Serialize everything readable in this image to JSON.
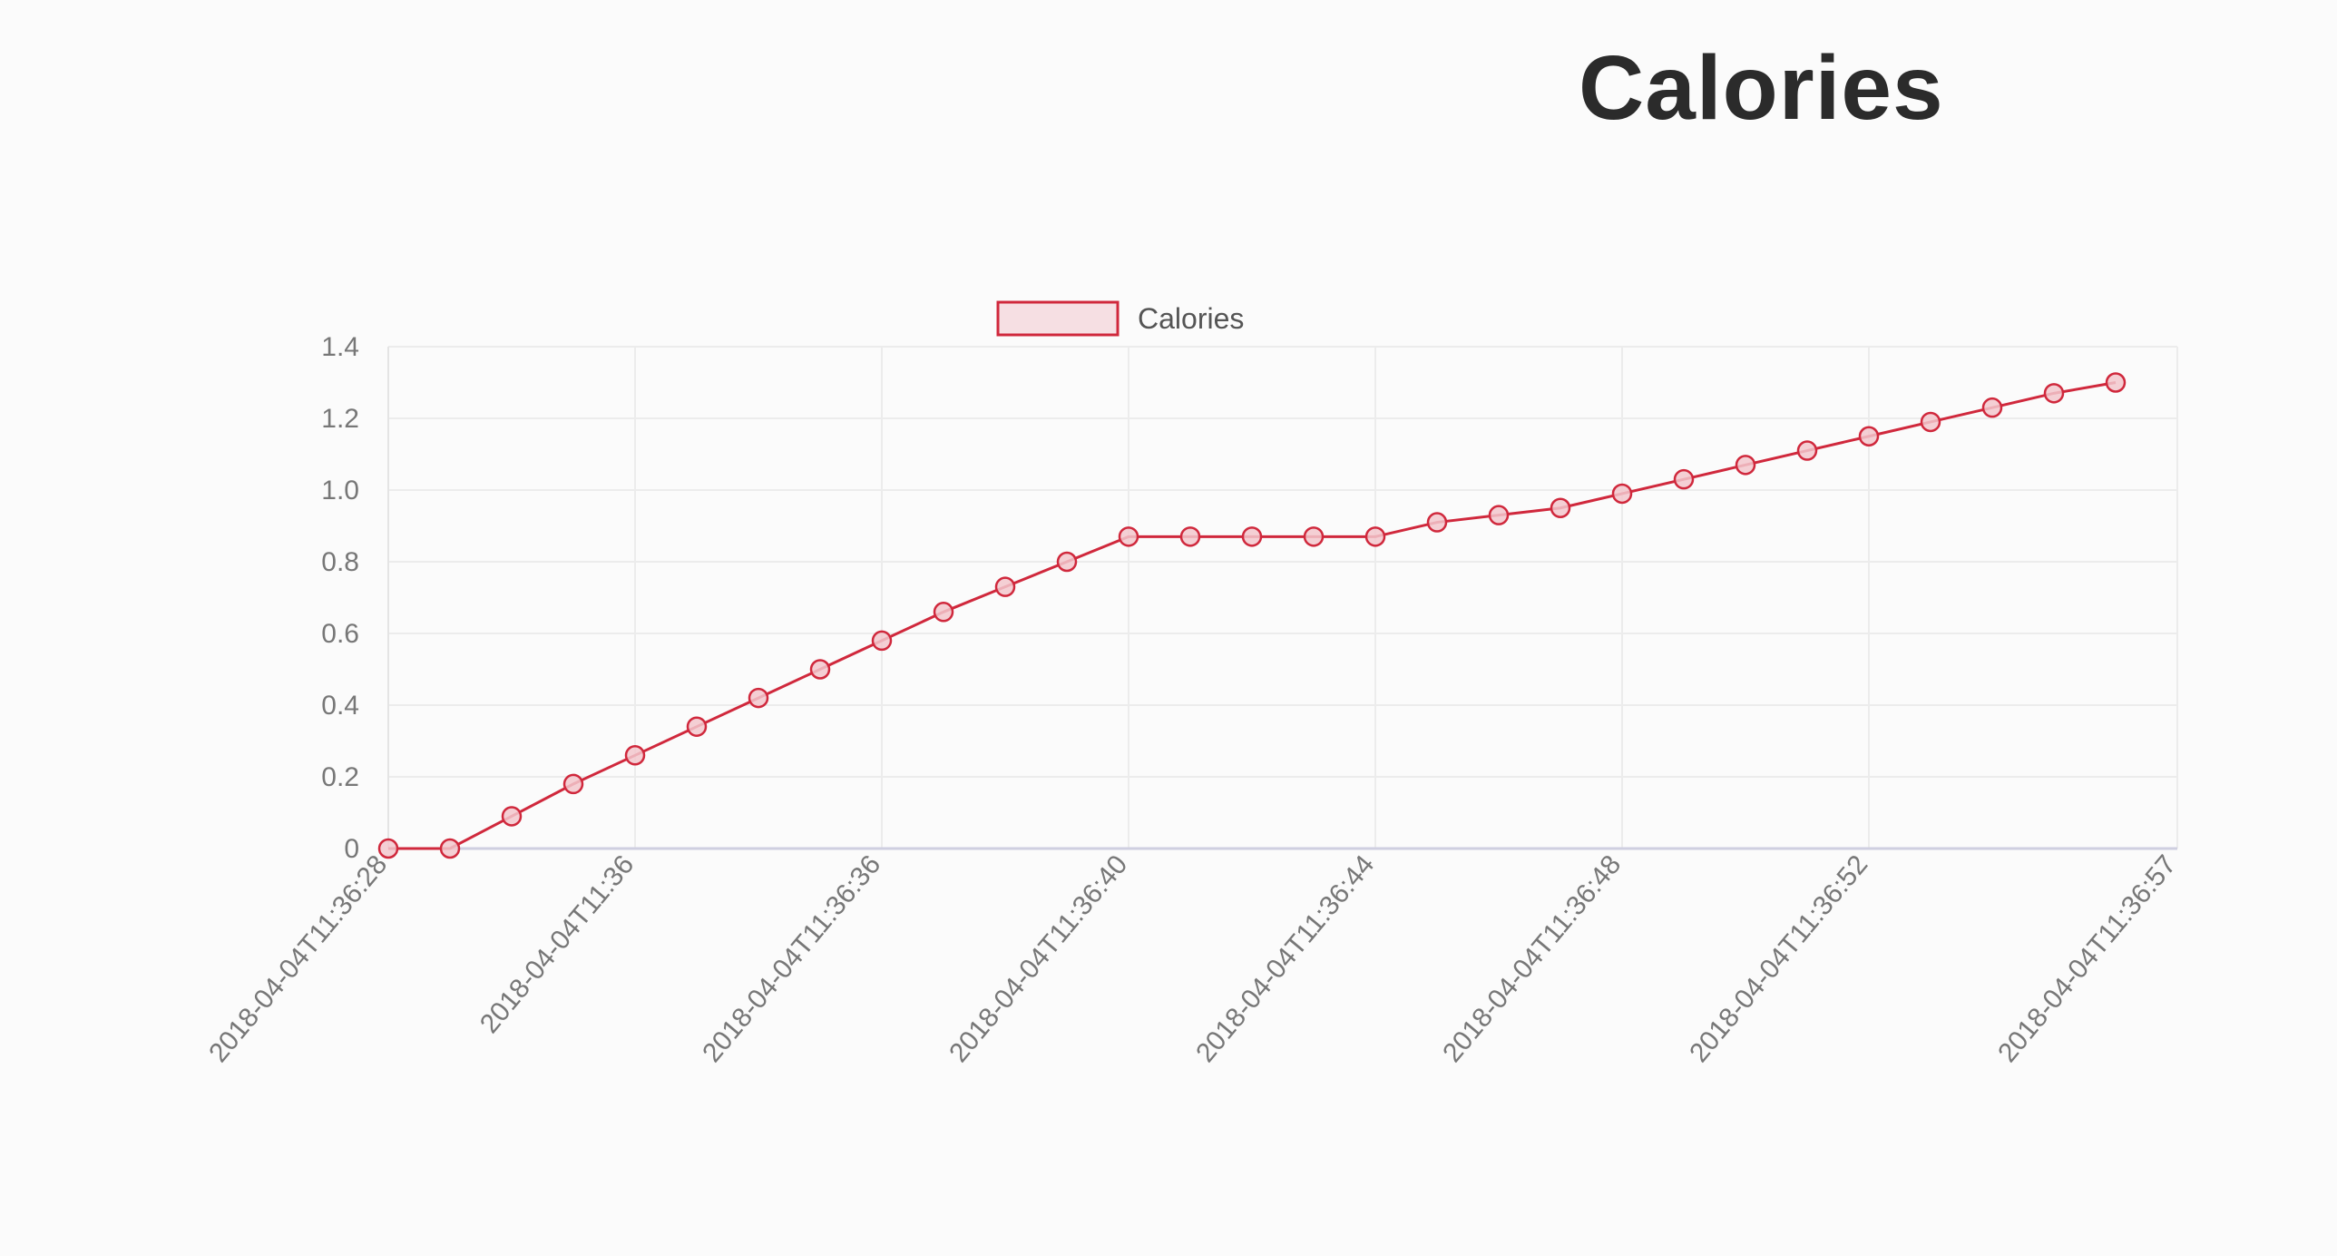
{
  "page": {
    "title": "Calories"
  },
  "chart_data": {
    "type": "line",
    "title": "",
    "xlabel": "",
    "ylabel": "",
    "ylim": [
      0,
      1.4
    ],
    "yticks": [
      "0",
      "0.2",
      "0.4",
      "0.6",
      "0.8",
      "1.0",
      "1.2",
      "1.4"
    ],
    "grid": true,
    "legend": "top-center",
    "x_tick_labels": [
      "2018-04-04T11:36:28",
      "2018-04-04T11:36",
      "2018-04-04T11:36:36",
      "2018-04-04T11:36:40",
      "2018-04-04T11:36:44",
      "2018-04-04T11:36:48",
      "2018-04-04T11:36:52",
      "2018-04-04T11:36:57"
    ],
    "series": [
      {
        "name": "Calories",
        "color": "#d0283c",
        "values": [
          0,
          0,
          0.09,
          0.18,
          0.26,
          0.34,
          0.42,
          0.5,
          0.58,
          0.66,
          0.73,
          0.8,
          0.87,
          0.87,
          0.87,
          0.87,
          0.87,
          0.91,
          0.93,
          0.95,
          0.99,
          1.03,
          1.07,
          1.11,
          1.15,
          1.19,
          1.23,
          1.27,
          1.3
        ]
      }
    ]
  }
}
